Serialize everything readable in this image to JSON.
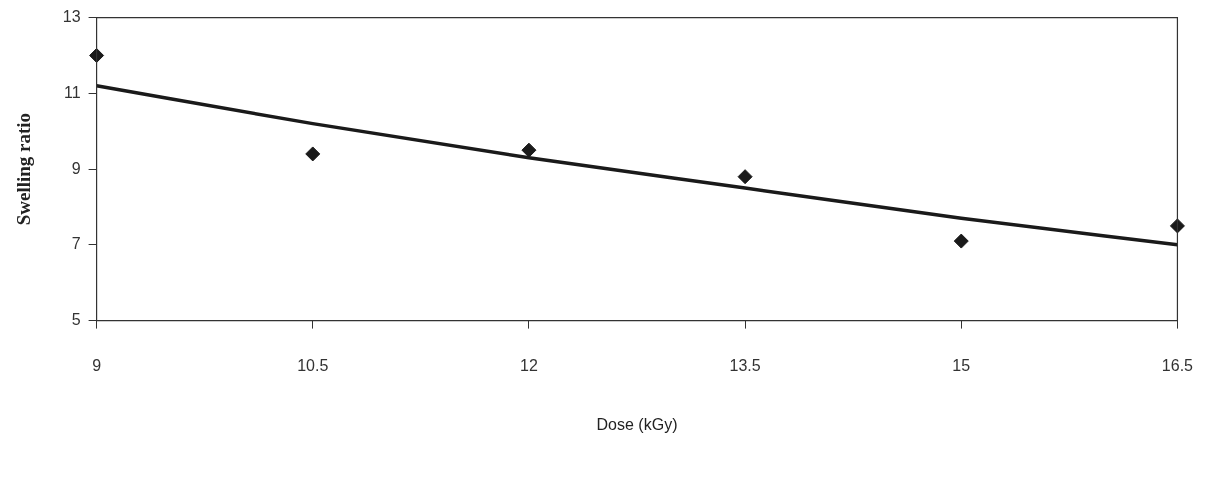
{
  "chart_data": {
    "type": "scatter",
    "xlabel": "Dose (kGy)",
    "ylabel": "Swelling ratio",
    "xlim": [
      9,
      16.5
    ],
    "xticks": [
      9,
      10.5,
      12,
      13.5,
      15,
      16.5
    ],
    "ylim": [
      5,
      13
    ],
    "yticks": [
      5,
      7,
      9,
      11,
      13
    ],
    "grid": false,
    "legend": false,
    "marker": "diamond",
    "series": [
      {
        "color": "#1a1a1a",
        "x": [
          9,
          10.5,
          12,
          13.5,
          15,
          16.5
        ],
        "values": [
          12.0,
          9.4,
          9.5,
          8.8,
          7.1,
          7.5
        ]
      },
      {
        "type": "line",
        "color": "#1a1a1a",
        "marker": "none",
        "line_style": "solid",
        "x": [
          9,
          10.5,
          12,
          13.5,
          15,
          16.5
        ],
        "values": [
          11.2,
          10.2,
          9.3,
          8.5,
          7.7,
          7.0
        ]
      }
    ]
  }
}
